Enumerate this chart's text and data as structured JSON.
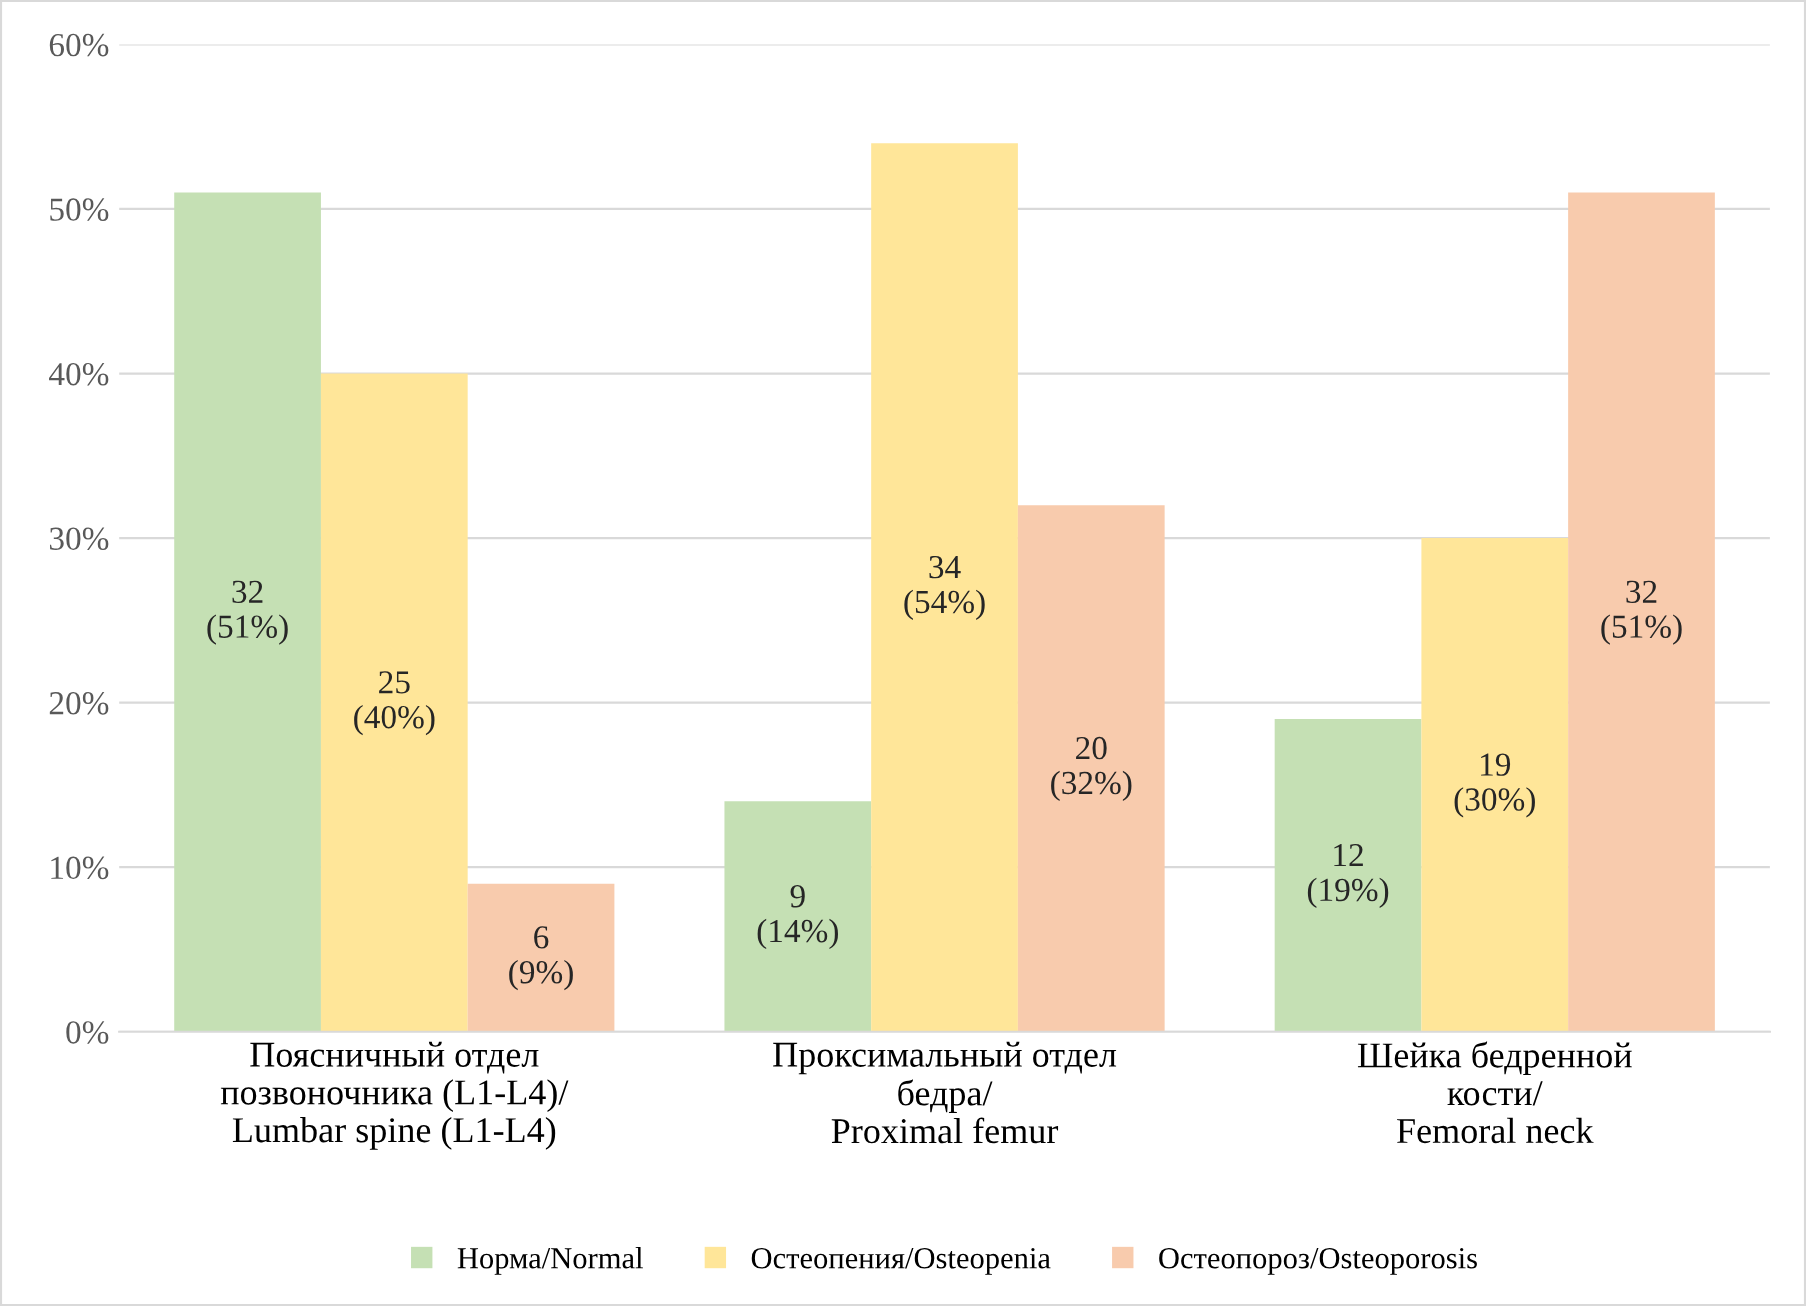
{
  "chart_data": {
    "type": "bar",
    "categories": [
      "Поясничный отдел\nпозвоночника (L1-L4)/\nLumbar spine (L1-L4)",
      "Проксимальный отдел\nбедра/\nProximal femur",
      "Шейка бедренной\nкости/\nFemoral neck"
    ],
    "series": [
      {
        "name": "Норма/Normal",
        "color": "#c5e0b4",
        "values": [
          51,
          14,
          19
        ],
        "value_labels": [
          "32\n(51%)",
          "9\n(14%)",
          "12\n(19%)"
        ]
      },
      {
        "name": "Остеопения/Osteopenia",
        "color": "#ffe699",
        "values": [
          40,
          54,
          30
        ],
        "value_labels": [
          "25\n(40%)",
          "34\n(54%)",
          "19\n(30%)"
        ]
      },
      {
        "name": "Остеопороз/Osteoporosis",
        "color": "#f8cbad",
        "values": [
          9,
          32,
          51
        ],
        "value_labels": [
          "6\n(9%)",
          "20\n(32%)",
          "32\n(51%)"
        ]
      }
    ],
    "ylim": [
      0,
      60
    ],
    "yticks": [
      {
        "value": 0,
        "label": "0%"
      },
      {
        "value": 10,
        "label": "10%"
      },
      {
        "value": 20,
        "label": "20%"
      },
      {
        "value": 30,
        "label": "30%"
      },
      {
        "value": 40,
        "label": "40%"
      },
      {
        "value": 50,
        "label": "50%"
      },
      {
        "value": 60,
        "label": "60%"
      }
    ],
    "grid": "y",
    "legend": "bottom"
  }
}
